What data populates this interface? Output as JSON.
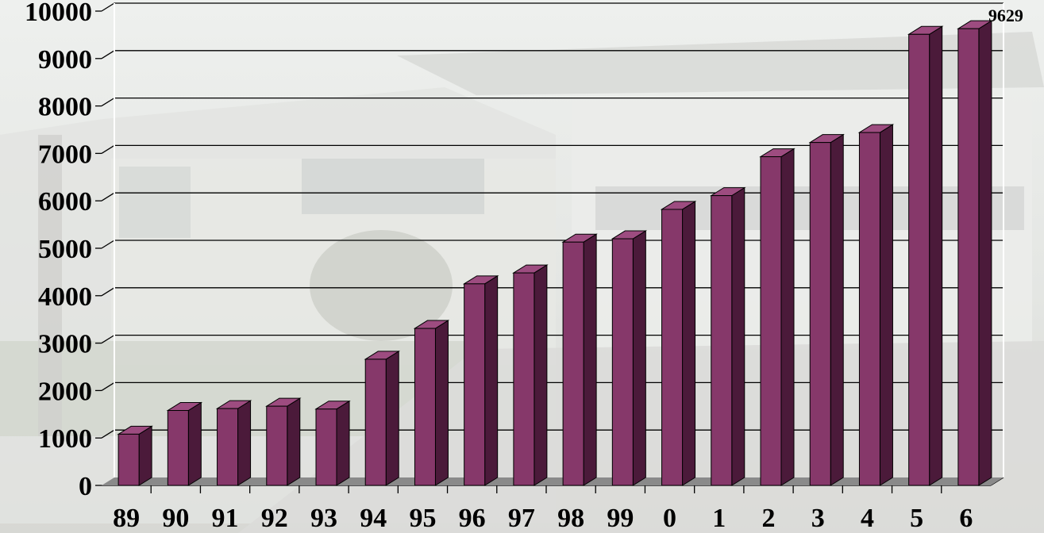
{
  "chart_data": {
    "type": "bar",
    "categories": [
      "89",
      "90",
      "91",
      "92",
      "93",
      "94",
      "95",
      "96",
      "97",
      "98",
      "99",
      "0",
      "1",
      "2",
      "3",
      "4",
      "5",
      "6"
    ],
    "values": [
      1080,
      1580,
      1620,
      1670,
      1610,
      2660,
      3310,
      4250,
      4480,
      5130,
      5200,
      5820,
      6110,
      6930,
      7230,
      7440,
      9510,
      9629
    ],
    "ylim": [
      0,
      10000
    ],
    "yticks": [
      "0",
      "1000",
      "2000",
      "3000",
      "4000",
      "5000",
      "6000",
      "7000",
      "8000",
      "9000",
      "10000"
    ],
    "data_labels": [
      {
        "category": "6",
        "text": "9629"
      }
    ],
    "grid": true,
    "legend": "none",
    "title": "",
    "xlabel": "",
    "ylabel": "",
    "colors": {
      "bar_front": "#86386a",
      "bar_side": "#4b1a3a",
      "bar_top": "#9d4c80",
      "floor": "#8a8a8a",
      "gridline": "#000000"
    }
  }
}
